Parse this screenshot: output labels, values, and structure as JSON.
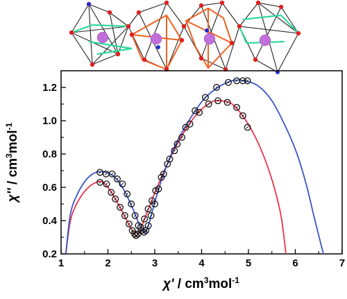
{
  "chart_data": {
    "type": "scatter",
    "xlabel_parts": {
      "symbol": "χ'",
      "unit": " / cm",
      "sup": "3",
      "unit2": "mol",
      "sup2": "-1"
    },
    "ylabel_parts": {
      "symbol": "χ''",
      "unit": " / cm",
      "sup": "3",
      "unit2": "mol",
      "sup2": "-1"
    },
    "xlim": [
      1,
      7
    ],
    "ylim": [
      0.2,
      1.3
    ],
    "xticks": [
      "1",
      "2",
      "3",
      "4",
      "5",
      "6",
      "7"
    ],
    "yticks": [
      "0.2",
      "0.4",
      "0.6",
      "0.8",
      "1.0",
      "1.2"
    ],
    "ytick_values": [
      0.2,
      0.3,
      0.4,
      0.5,
      0.6,
      0.7,
      0.8,
      0.9,
      1.0,
      1.1,
      1.2
    ],
    "series": [
      {
        "color": "#e8344a",
        "markers": [
          [
            1.83,
            0.63
          ],
          [
            1.97,
            0.62
          ],
          [
            2.07,
            0.57
          ],
          [
            2.16,
            0.53
          ],
          [
            2.26,
            0.48
          ],
          [
            2.36,
            0.43
          ],
          [
            2.45,
            0.38
          ],
          [
            2.52,
            0.34
          ],
          [
            2.57,
            0.32
          ],
          [
            2.6,
            0.31
          ],
          [
            2.64,
            0.32
          ],
          [
            2.7,
            0.36
          ],
          [
            2.78,
            0.41
          ],
          [
            2.86,
            0.47
          ],
          [
            2.94,
            0.52
          ],
          [
            3.02,
            0.58
          ],
          [
            3.14,
            0.66
          ],
          [
            3.27,
            0.74
          ],
          [
            3.42,
            0.82
          ],
          [
            3.58,
            0.9
          ],
          [
            3.75,
            0.98
          ],
          [
            3.95,
            1.05
          ],
          [
            4.15,
            1.1
          ],
          [
            4.35,
            1.12
          ],
          [
            4.55,
            1.11
          ],
          [
            4.75,
            1.08
          ],
          [
            4.88,
            1.03
          ],
          [
            4.98,
            0.96
          ]
        ],
        "fit_curve": [
          [
            1.1,
            0.2
          ],
          [
            1.2,
            0.4
          ],
          [
            1.35,
            0.51
          ],
          [
            1.55,
            0.59
          ],
          [
            1.75,
            0.63
          ],
          [
            1.9,
            0.63
          ],
          [
            2.05,
            0.58
          ],
          [
            2.2,
            0.51
          ],
          [
            2.35,
            0.43
          ],
          [
            2.48,
            0.36
          ],
          [
            2.57,
            0.32
          ],
          [
            2.62,
            0.31
          ],
          [
            2.7,
            0.35
          ],
          [
            2.85,
            0.46
          ],
          [
            3.05,
            0.6
          ],
          [
            3.3,
            0.76
          ],
          [
            3.6,
            0.92
          ],
          [
            3.9,
            1.04
          ],
          [
            4.2,
            1.11
          ],
          [
            4.4,
            1.12
          ],
          [
            4.65,
            1.1
          ],
          [
            4.9,
            1.02
          ],
          [
            5.15,
            0.9
          ],
          [
            5.35,
            0.77
          ],
          [
            5.55,
            0.6
          ],
          [
            5.7,
            0.42
          ],
          [
            5.8,
            0.2
          ]
        ]
      },
      {
        "color": "#3a55c8",
        "markers": [
          [
            1.83,
            0.69
          ],
          [
            1.96,
            0.68
          ],
          [
            2.09,
            0.68
          ],
          [
            2.2,
            0.65
          ],
          [
            2.31,
            0.62
          ],
          [
            2.41,
            0.56
          ],
          [
            2.5,
            0.5
          ],
          [
            2.58,
            0.43
          ],
          [
            2.65,
            0.37
          ],
          [
            2.71,
            0.34
          ],
          [
            2.77,
            0.33
          ],
          [
            2.81,
            0.34
          ],
          [
            2.86,
            0.37
          ],
          [
            2.92,
            0.43
          ],
          [
            3.0,
            0.5
          ],
          [
            3.08,
            0.59
          ],
          [
            3.19,
            0.68
          ],
          [
            3.32,
            0.77
          ],
          [
            3.48,
            0.86
          ],
          [
            3.66,
            0.96
          ],
          [
            3.86,
            1.06
          ],
          [
            4.08,
            1.14
          ],
          [
            4.32,
            1.2
          ],
          [
            4.57,
            1.23
          ],
          [
            4.75,
            1.24
          ],
          [
            4.88,
            1.24
          ],
          [
            4.98,
            1.24
          ]
        ],
        "fit_curve": [
          [
            1.1,
            0.2
          ],
          [
            1.2,
            0.44
          ],
          [
            1.35,
            0.56
          ],
          [
            1.55,
            0.65
          ],
          [
            1.75,
            0.69
          ],
          [
            1.95,
            0.69
          ],
          [
            2.15,
            0.66
          ],
          [
            2.35,
            0.58
          ],
          [
            2.55,
            0.46
          ],
          [
            2.68,
            0.37
          ],
          [
            2.77,
            0.33
          ],
          [
            2.85,
            0.36
          ],
          [
            3.0,
            0.51
          ],
          [
            3.2,
            0.69
          ],
          [
            3.45,
            0.86
          ],
          [
            3.75,
            1.01
          ],
          [
            4.05,
            1.13
          ],
          [
            4.35,
            1.2
          ],
          [
            4.65,
            1.24
          ],
          [
            4.9,
            1.24
          ],
          [
            5.2,
            1.21
          ],
          [
            5.5,
            1.12
          ],
          [
            5.8,
            0.96
          ],
          [
            6.05,
            0.79
          ],
          [
            6.25,
            0.6
          ],
          [
            6.42,
            0.4
          ],
          [
            6.6,
            0.2
          ]
        ]
      }
    ]
  },
  "inset_structure": {
    "icon": "polyhedra-chain-crystal-structure",
    "colors": {
      "edge": "#222222",
      "orange": "#f06020",
      "green": "#30d8a0",
      "red_atom": "#e02020",
      "blue_atom": "#2030d0",
      "metal": "#c070d8"
    }
  }
}
